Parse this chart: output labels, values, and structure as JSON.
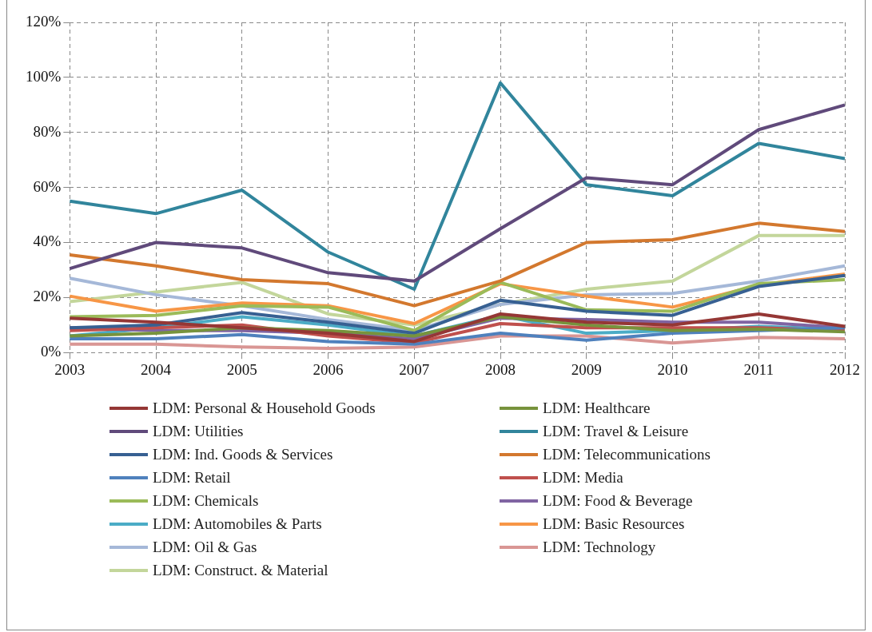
{
  "chart_data": {
    "type": "line",
    "categories": [
      "2003",
      "2004",
      "2005",
      "2006",
      "2007",
      "2008",
      "2009",
      "2010",
      "2011",
      "2012"
    ],
    "ylim": [
      0,
      120
    ],
    "yticks": [
      {
        "value": 0,
        "label": "0%"
      },
      {
        "value": 20,
        "label": "20%"
      },
      {
        "value": 40,
        "label": "40%"
      },
      {
        "value": 60,
        "label": "60%"
      },
      {
        "value": 80,
        "label": "80%"
      },
      {
        "value": 100,
        "label": "100%"
      },
      {
        "value": 120,
        "label": "120%"
      }
    ],
    "grid": true,
    "legend": "bottom",
    "marker": "none",
    "line_style": "solid",
    "series": [
      {
        "name": "LDM: Personal & Household Goods",
        "color": "#953735",
        "values": [
          12.5,
          11,
          9,
          7,
          4,
          14,
          11,
          10,
          14,
          9.5
        ]
      },
      {
        "name": "LDM: Healthcare",
        "color": "#77933c",
        "values": [
          6,
          7,
          9,
          8,
          6,
          13,
          10,
          8,
          8.5,
          7.5
        ]
      },
      {
        "name": "LDM: Utilities",
        "color": "#604a7b",
        "values": [
          30.5,
          40,
          38,
          29,
          26,
          45,
          63.5,
          61,
          81,
          90
        ]
      },
      {
        "name": "LDM: Travel & Leisure",
        "color": "#31859c",
        "values": [
          55,
          50.5,
          59,
          36.5,
          23,
          98,
          61,
          57,
          76,
          70.5
        ]
      },
      {
        "name": "LDM: Ind. Goods & Services",
        "color": "#376092",
        "values": [
          9,
          10,
          14.5,
          11,
          7,
          19,
          15,
          13.5,
          24,
          28
        ]
      },
      {
        "name": "LDM: Telecommunications",
        "color": "#d3782e",
        "values": [
          35.5,
          31.5,
          26.5,
          25,
          17,
          26,
          40,
          41,
          47,
          44
        ]
      },
      {
        "name": "LDM: Retail",
        "color": "#4f81bd",
        "values": [
          5,
          5,
          6.5,
          4,
          3,
          7,
          4.5,
          7,
          8,
          9
        ]
      },
      {
        "name": "LDM: Media",
        "color": "#c0504d",
        "values": [
          8,
          9,
          10,
          6,
          3.5,
          10.5,
          9,
          9,
          9,
          8
        ]
      },
      {
        "name": "LDM: Chemicals",
        "color": "#9bbb59",
        "values": [
          13,
          13.5,
          17,
          16.5,
          8,
          25.5,
          15.5,
          15,
          25,
          26.5
        ]
      },
      {
        "name": "LDM: Food & Beverage",
        "color": "#8064a2",
        "values": [
          9,
          8,
          8,
          7,
          5,
          12.5,
          12,
          11,
          11,
          9
        ]
      },
      {
        "name": "LDM: Automobiles & Parts",
        "color": "#4bacc6",
        "values": [
          6,
          9,
          13,
          10,
          6,
          13.5,
          7,
          8,
          9.5,
          8.5
        ]
      },
      {
        "name": "LDM: Basic Resources",
        "color": "#f79646",
        "values": [
          20.5,
          15,
          18,
          17,
          10.5,
          25,
          20.5,
          16.5,
          24.5,
          28.5
        ]
      },
      {
        "name": "LDM: Oil & Gas",
        "color": "#a5b8d8",
        "values": [
          27,
          21,
          17,
          12,
          8,
          17.5,
          21,
          21.5,
          26,
          31.5
        ]
      },
      {
        "name": "LDM: Technology",
        "color": "#d99694",
        "values": [
          3,
          3,
          2,
          1.5,
          2,
          6,
          6,
          3.5,
          5.5,
          5
        ]
      },
      {
        "name": "LDM: Construct. & Material",
        "color": "#c3d69b",
        "values": [
          18.5,
          22,
          25.5,
          14,
          10,
          17.5,
          23,
          26,
          42.5,
          42.5
        ]
      }
    ]
  }
}
